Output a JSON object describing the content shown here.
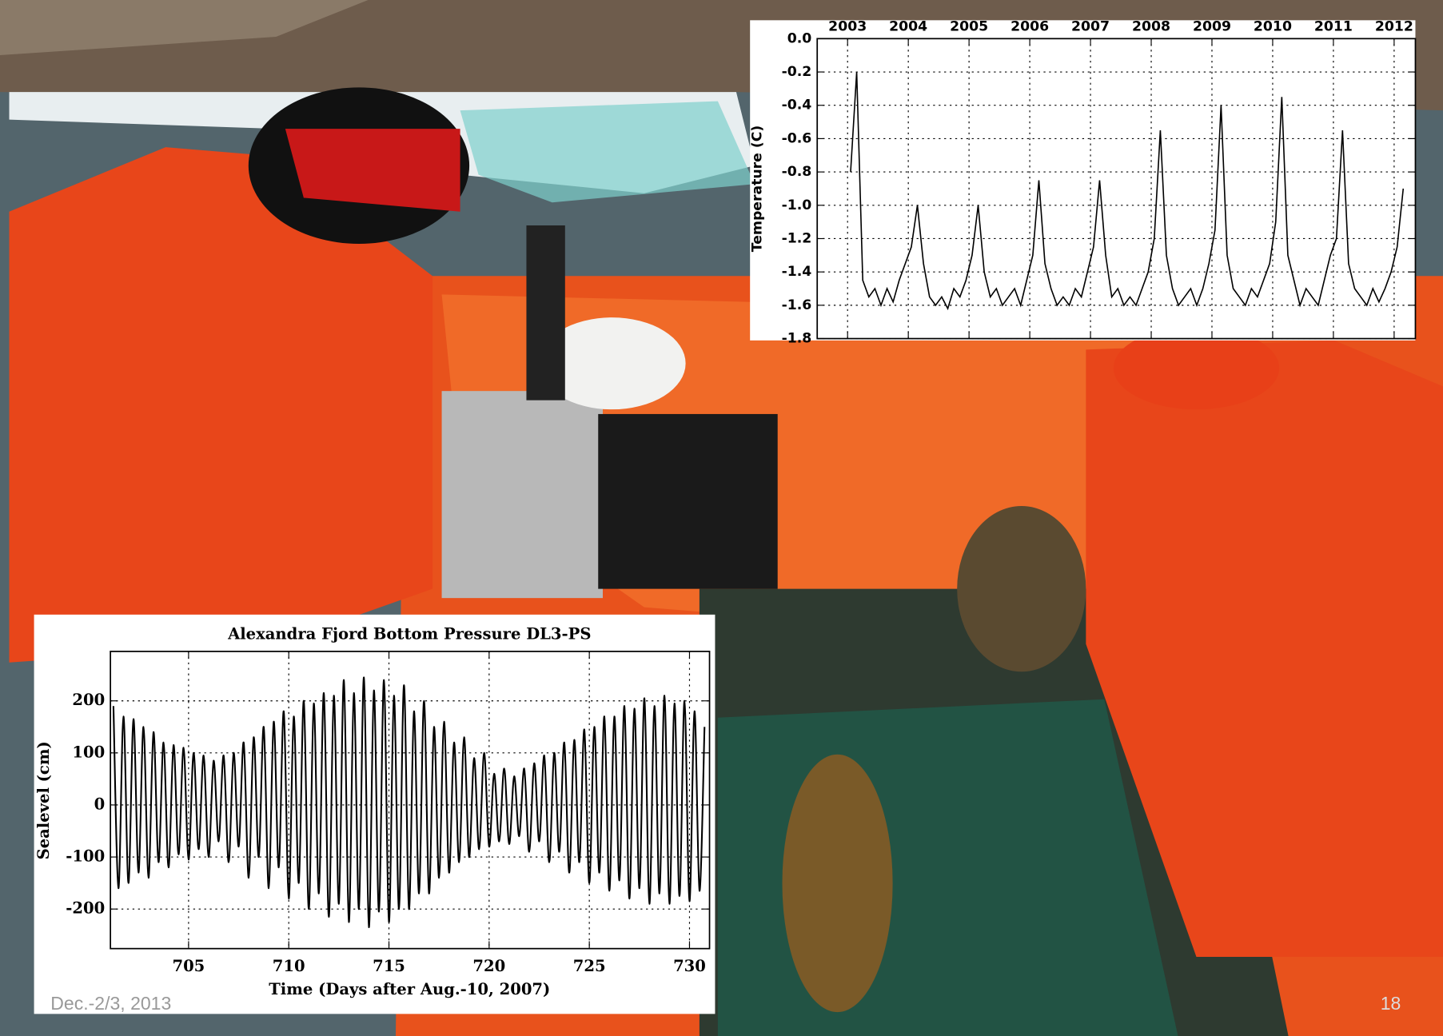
{
  "chart_data": [
    {
      "type": "line",
      "ylabel": "Temperature (C)",
      "color": "#000000",
      "grid": true,
      "xlim": [
        2003,
        2012.85
      ],
      "ylim": [
        -1.8,
        0
      ],
      "xticks": [
        {
          "value": 2003.5,
          "label": "2003"
        },
        {
          "value": 2004.5,
          "label": "2004"
        },
        {
          "value": 2005.5,
          "label": "2005"
        },
        {
          "value": 2006.5,
          "label": "2006"
        },
        {
          "value": 2007.5,
          "label": "2007"
        },
        {
          "value": 2008.5,
          "label": "2008"
        },
        {
          "value": 2009.5,
          "label": "2009"
        },
        {
          "value": 2010.5,
          "label": "2010"
        },
        {
          "value": 2011.5,
          "label": "2011"
        },
        {
          "value": 2012.5,
          "label": "2012"
        }
      ],
      "yticks": [
        {
          "value": 0,
          "label": "0.0"
        },
        -0.2,
        -0.4,
        -0.6,
        -0.8,
        {
          "value": -1,
          "label": "-1.0"
        },
        -1.2,
        -1.4,
        -1.6,
        -1.8
      ],
      "x": [
        2003.55,
        2003.65,
        2003.75,
        2003.85,
        2003.95,
        2004.05,
        2004.15,
        2004.25,
        2004.35,
        2004.45,
        2004.55,
        2004.65,
        2004.75,
        2004.85,
        2004.95,
        2005.05,
        2005.15,
        2005.25,
        2005.35,
        2005.45,
        2005.55,
        2005.65,
        2005.75,
        2005.85,
        2005.95,
        2006.05,
        2006.15,
        2006.25,
        2006.35,
        2006.45,
        2006.55,
        2006.65,
        2006.75,
        2006.85,
        2006.95,
        2007.05,
        2007.15,
        2007.25,
        2007.35,
        2007.45,
        2007.55,
        2007.65,
        2007.75,
        2007.85,
        2007.95,
        2008.05,
        2008.15,
        2008.25,
        2008.35,
        2008.45,
        2008.55,
        2008.65,
        2008.75,
        2008.85,
        2008.95,
        2009.05,
        2009.15,
        2009.25,
        2009.35,
        2009.45,
        2009.55,
        2009.65,
        2009.75,
        2009.85,
        2009.95,
        2010.05,
        2010.15,
        2010.25,
        2010.35,
        2010.45,
        2010.55,
        2010.65,
        2010.75,
        2010.85,
        2010.95,
        2011.05,
        2011.15,
        2011.25,
        2011.35,
        2011.45,
        2011.55,
        2011.65,
        2011.75,
        2011.85,
        2011.95,
        2012.05,
        2012.15,
        2012.25,
        2012.35,
        2012.45,
        2012.55,
        2012.65
      ],
      "values": [
        -0.8,
        -0.2,
        -1.45,
        -1.55,
        -1.5,
        -1.6,
        -1.5,
        -1.58,
        -1.45,
        -1.35,
        -1.25,
        -1.0,
        -1.35,
        -1.55,
        -1.6,
        -1.55,
        -1.62,
        -1.5,
        -1.55,
        -1.45,
        -1.3,
        -1.0,
        -1.4,
        -1.55,
        -1.5,
        -1.6,
        -1.55,
        -1.5,
        -1.6,
        -1.45,
        -1.3,
        -0.85,
        -1.35,
        -1.5,
        -1.6,
        -1.55,
        -1.6,
        -1.5,
        -1.55,
        -1.4,
        -1.25,
        -0.85,
        -1.3,
        -1.55,
        -1.5,
        -1.6,
        -1.55,
        -1.6,
        -1.5,
        -1.4,
        -1.2,
        -0.55,
        -1.3,
        -1.5,
        -1.6,
        -1.55,
        -1.5,
        -1.6,
        -1.5,
        -1.35,
        -1.15,
        -0.4,
        -1.3,
        -1.5,
        -1.55,
        -1.6,
        -1.5,
        -1.55,
        -1.45,
        -1.35,
        -1.1,
        -0.35,
        -1.3,
        -1.45,
        -1.6,
        -1.5,
        -1.55,
        -1.6,
        -1.45,
        -1.3,
        -1.2,
        -0.55,
        -1.35,
        -1.5,
        -1.55,
        -1.6,
        -1.5,
        -1.58,
        -1.5,
        -1.4,
        -1.25,
        -0.9
      ]
    },
    {
      "type": "line",
      "title": "Alexandra Fjord Bottom Pressure DL3-PS",
      "xlabel": "Time (Days after Aug.-10, 2007)",
      "ylabel": "Sealevel (cm)",
      "color": "#000000",
      "grid": true,
      "xlim": [
        701.1,
        731
      ],
      "ylim": [
        -276,
        295
      ],
      "xticks": [
        705,
        710,
        715,
        720,
        725,
        730
      ],
      "yticks": [
        200,
        100,
        0,
        -100,
        -200
      ],
      "x": [
        701.25,
        701.5,
        701.75,
        702,
        702.25,
        702.5,
        702.75,
        703,
        703.25,
        703.5,
        703.75,
        704,
        704.25,
        704.5,
        704.75,
        705,
        705.25,
        705.5,
        705.75,
        706,
        706.25,
        706.5,
        706.75,
        707,
        707.25,
        707.5,
        707.75,
        708,
        708.25,
        708.5,
        708.75,
        709,
        709.25,
        709.5,
        709.75,
        710,
        710.25,
        710.5,
        710.75,
        711,
        711.25,
        711.5,
        711.75,
        712,
        712.25,
        712.5,
        712.75,
        713,
        713.25,
        713.5,
        713.75,
        714,
        714.25,
        714.5,
        714.75,
        715,
        715.25,
        715.5,
        715.75,
        716,
        716.25,
        716.5,
        716.75,
        717,
        717.25,
        717.5,
        717.75,
        718,
        718.25,
        718.5,
        718.75,
        719,
        719.25,
        719.5,
        719.75,
        720,
        720.25,
        720.5,
        720.75,
        721,
        721.25,
        721.5,
        721.75,
        722,
        722.25,
        722.5,
        722.75,
        723,
        723.25,
        723.5,
        723.75,
        724,
        724.25,
        724.5,
        724.75,
        725,
        725.25,
        725.5,
        725.75,
        726,
        726.25,
        726.5,
        726.75,
        727,
        727.25,
        727.5,
        727.75,
        728,
        728.25,
        728.5,
        728.75,
        729,
        729.25,
        729.5,
        729.75,
        730,
        730.25,
        730.5,
        730.75
      ],
      "values": [
        190,
        -160,
        170,
        -150,
        165,
        -130,
        150,
        -140,
        140,
        -110,
        120,
        -120,
        115,
        -95,
        110,
        -105,
        100,
        -85,
        95,
        -100,
        85,
        -70,
        95,
        -110,
        100,
        -80,
        120,
        -140,
        130,
        -100,
        150,
        -160,
        160,
        -120,
        180,
        -180,
        170,
        -150,
        200,
        -200,
        195,
        -170,
        215,
        -215,
        210,
        -190,
        240,
        -225,
        215,
        -200,
        245,
        -235,
        220,
        -205,
        240,
        -225,
        210,
        -200,
        230,
        -200,
        180,
        -170,
        200,
        -170,
        150,
        -140,
        160,
        -130,
        120,
        -110,
        130,
        -100,
        90,
        -85,
        100,
        -80,
        60,
        -70,
        70,
        -75,
        55,
        -60,
        70,
        -90,
        80,
        -70,
        95,
        -110,
        100,
        -90,
        120,
        -130,
        125,
        -110,
        145,
        -150,
        150,
        -130,
        170,
        -165,
        170,
        -145,
        190,
        -180,
        185,
        -160,
        205,
        -190,
        190,
        -170,
        210,
        -190,
        195,
        -175,
        200,
        -185,
        180,
        -165,
        150
      ]
    }
  ],
  "footer": {
    "date": "Dec.-2/3, 2013",
    "page": "18"
  }
}
